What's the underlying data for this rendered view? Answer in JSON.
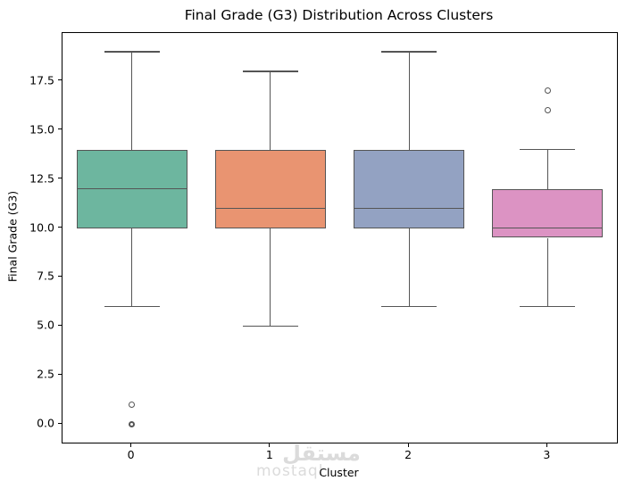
{
  "title": "Final Grade (G3) Distribution Across Clusters",
  "axes": {
    "xlabel": "Cluster",
    "ylabel": "Final Grade (G3)",
    "ytick_labels": [
      "0.0",
      "2.5",
      "5.0",
      "7.5",
      "10.0",
      "12.5",
      "15.0",
      "17.5"
    ],
    "xtick_labels": [
      "0",
      "1",
      "2",
      "3"
    ]
  },
  "watermark": {
    "arabic": "مستقل",
    "latin": "mostaql",
    "color": "#dbdbdb"
  },
  "style": {
    "line_color": "#555555",
    "spine_color": "#000000",
    "background": "#ffffff"
  },
  "chart_data": {
    "type": "box",
    "title": "Final Grade (G3) Distribution Across Clusters",
    "xlabel": "Cluster",
    "ylabel": "Final Grade (G3)",
    "categories": [
      "0",
      "1",
      "2",
      "3"
    ],
    "ylim": [
      -0.95,
      19.95
    ],
    "yticks": [
      0.0,
      2.5,
      5.0,
      7.5,
      10.0,
      12.5,
      15.0,
      17.5
    ],
    "grid": false,
    "legend": null,
    "series": [
      {
        "cluster": "0",
        "whisker_low": 6,
        "q1": 10,
        "median": 12,
        "q3": 14,
        "whisker_high": 19,
        "outliers": [
          1,
          0,
          0
        ],
        "color": "#6db69f"
      },
      {
        "cluster": "1",
        "whisker_low": 5,
        "q1": 10,
        "median": 11,
        "q3": 14,
        "whisker_high": 18,
        "outliers": [],
        "color": "#e99471"
      },
      {
        "cluster": "2",
        "whisker_low": 6,
        "q1": 10,
        "median": 11,
        "q3": 14,
        "whisker_high": 19,
        "outliers": [],
        "color": "#93a2c2"
      },
      {
        "cluster": "3",
        "whisker_low": 6,
        "q1": 9.5,
        "median": 10,
        "q3": 12,
        "whisker_high": 14,
        "outliers": [
          16,
          17
        ],
        "color": "#dc93c3"
      }
    ]
  }
}
